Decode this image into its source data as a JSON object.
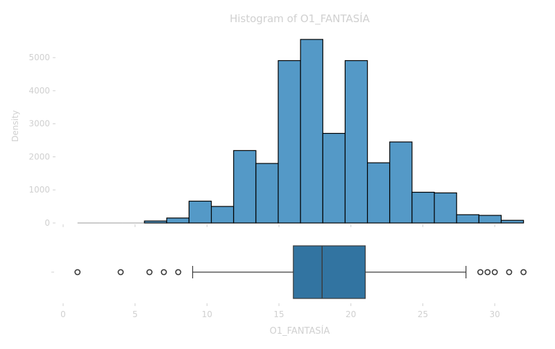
{
  "chart_data": [
    {
      "type": "bar",
      "subtype": "histogram",
      "title": "Histogram of O1_FANTASÍA",
      "ylabel": "Density",
      "xlim": [
        0,
        32.5
      ],
      "ylim": [
        0,
        5800
      ],
      "yticks": [
        0,
        1000,
        2000,
        3000,
        4000,
        5000
      ],
      "xticks_shared": [
        0,
        5,
        10,
        15,
        20,
        25,
        30
      ],
      "bar_color": "#5499c7",
      "edge_color": "#000000",
      "bins": [
        {
          "start": 1.0,
          "end": 2.55,
          "value": 0
        },
        {
          "start": 2.55,
          "end": 4.1,
          "value": 0
        },
        {
          "start": 4.1,
          "end": 5.65,
          "value": 0
        },
        {
          "start": 5.65,
          "end": 7.2,
          "value": 60
        },
        {
          "start": 7.2,
          "end": 8.75,
          "value": 150
        },
        {
          "start": 8.75,
          "end": 10.3,
          "value": 660
        },
        {
          "start": 10.3,
          "end": 11.85,
          "value": 500
        },
        {
          "start": 11.85,
          "end": 13.4,
          "value": 2190
        },
        {
          "start": 13.4,
          "end": 14.95,
          "value": 1800
        },
        {
          "start": 14.95,
          "end": 16.5,
          "value": 4910
        },
        {
          "start": 16.5,
          "end": 18.05,
          "value": 5550
        },
        {
          "start": 18.05,
          "end": 19.6,
          "value": 2710
        },
        {
          "start": 19.6,
          "end": 21.15,
          "value": 4910
        },
        {
          "start": 21.15,
          "end": 22.7,
          "value": 1820
        },
        {
          "start": 22.7,
          "end": 24.25,
          "value": 2450
        },
        {
          "start": 24.25,
          "end": 25.8,
          "value": 930
        },
        {
          "start": 25.8,
          "end": 27.35,
          "value": 910
        },
        {
          "start": 27.35,
          "end": 28.9,
          "value": 250
        },
        {
          "start": 28.9,
          "end": 30.45,
          "value": 230
        },
        {
          "start": 30.45,
          "end": 32.0,
          "value": 80
        }
      ]
    },
    {
      "type": "boxplot",
      "xlabel": "O1_FANTASÍA",
      "xlim": [
        0,
        32.5
      ],
      "xticks": [
        0,
        5,
        10,
        15,
        20,
        25,
        30
      ],
      "box_color": "#3274a1",
      "whisker_low": 9,
      "q1": 16,
      "median": 18,
      "q3": 21,
      "whisker_high": 28,
      "outliers": [
        1,
        4,
        6,
        7,
        8,
        29,
        29.5,
        30,
        31,
        32
      ]
    }
  ]
}
